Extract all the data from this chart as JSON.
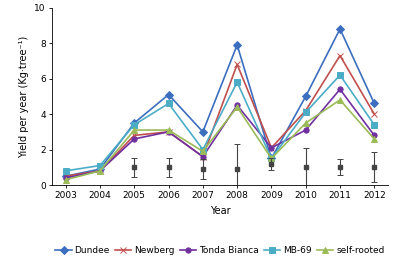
{
  "years": [
    2003,
    2004,
    2005,
    2006,
    2007,
    2008,
    2009,
    2010,
    2011,
    2012
  ],
  "Dundee": [
    0.5,
    0.9,
    3.5,
    5.1,
    3.0,
    7.9,
    1.5,
    5.0,
    8.8,
    4.6
  ],
  "Newberg": [
    0.5,
    0.8,
    2.8,
    3.0,
    1.6,
    6.8,
    2.1,
    4.2,
    7.3,
    4.0
  ],
  "Tonda_Bianca": [
    0.4,
    0.8,
    2.6,
    3.0,
    1.6,
    4.5,
    2.1,
    3.1,
    5.4,
    2.8
  ],
  "MB69": [
    0.8,
    1.1,
    3.4,
    4.6,
    2.0,
    5.8,
    1.5,
    4.1,
    6.2,
    3.4
  ],
  "self_rooted": [
    0.3,
    0.8,
    3.1,
    3.1,
    1.9,
    4.4,
    1.5,
    3.5,
    4.8,
    2.6
  ],
  "error_x": [
    2005,
    2006,
    2007,
    2008,
    2009,
    2010,
    2011,
    2012
  ],
  "error_vals": [
    0.55,
    0.55,
    0.55,
    1.4,
    0.35,
    1.1,
    0.45,
    0.85
  ],
  "error_base": [
    1.0,
    1.0,
    0.9,
    0.9,
    1.2,
    1.0,
    1.0,
    1.0
  ],
  "color_Dundee": "#3c6ebf",
  "color_Newberg": "#c0504d",
  "color_Tonda_Bianca": "#7030a0",
  "color_MB69": "#4bacc6",
  "color_self_rooted": "#9bbb59",
  "ylabel": "Yield per year (Kg·tree⁻¹)",
  "xlabel": "Year",
  "ylim": [
    0,
    10
  ],
  "yticks": [
    0,
    2,
    4,
    6,
    8,
    10
  ],
  "axis_fontsize": 7,
  "legend_fontsize": 6.5,
  "tick_fontsize": 6.5
}
